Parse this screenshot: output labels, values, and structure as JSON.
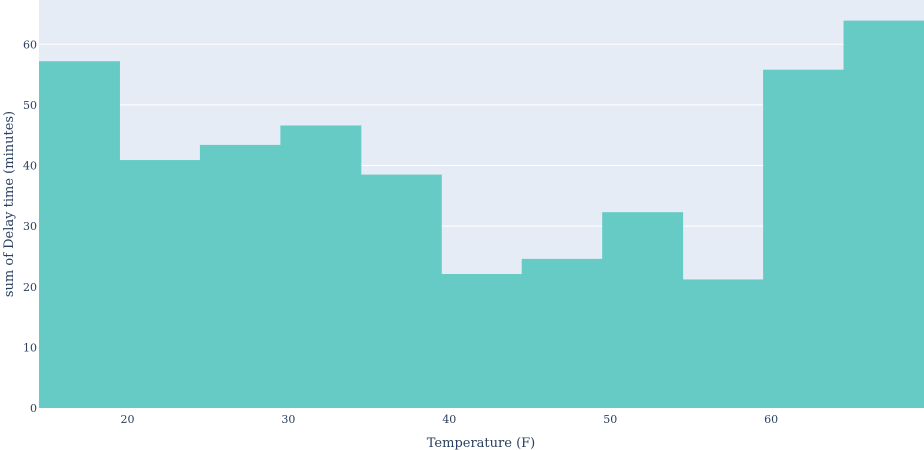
{
  "chart_data": {
    "type": "bar",
    "title": "",
    "xlabel": "Temperature (F)",
    "ylabel": "sum of Delay time (minutes)",
    "bins": [
      {
        "x0": 14.5,
        "x1": 19.5,
        "value": 57.2
      },
      {
        "x0": 19.5,
        "x1": 24.5,
        "value": 40.9
      },
      {
        "x0": 24.5,
        "x1": 29.5,
        "value": 43.4
      },
      {
        "x0": 29.5,
        "x1": 34.5,
        "value": 46.6
      },
      {
        "x0": 34.5,
        "x1": 39.5,
        "value": 38.5
      },
      {
        "x0": 39.5,
        "x1": 44.5,
        "value": 22.1
      },
      {
        "x0": 44.5,
        "x1": 49.5,
        "value": 24.6
      },
      {
        "x0": 49.5,
        "x1": 54.5,
        "value": 32.3
      },
      {
        "x0": 54.5,
        "x1": 59.5,
        "value": 21.2
      },
      {
        "x0": 59.5,
        "x1": 64.5,
        "value": 55.8
      },
      {
        "x0": 64.5,
        "x1": 69.5,
        "value": 63.9
      }
    ],
    "xlim": [
      14.5,
      69.5
    ],
    "ylim": [
      0,
      67.3
    ],
    "x_ticks": [
      20,
      30,
      40,
      50,
      60
    ],
    "y_ticks": [
      0,
      10,
      20,
      30,
      40,
      50,
      60
    ],
    "grid": true,
    "colors": {
      "bar": "#66cbc4",
      "plot_background": "#e5ecf6",
      "gridline": "#ffffff",
      "text": "#2a3f5f"
    }
  }
}
